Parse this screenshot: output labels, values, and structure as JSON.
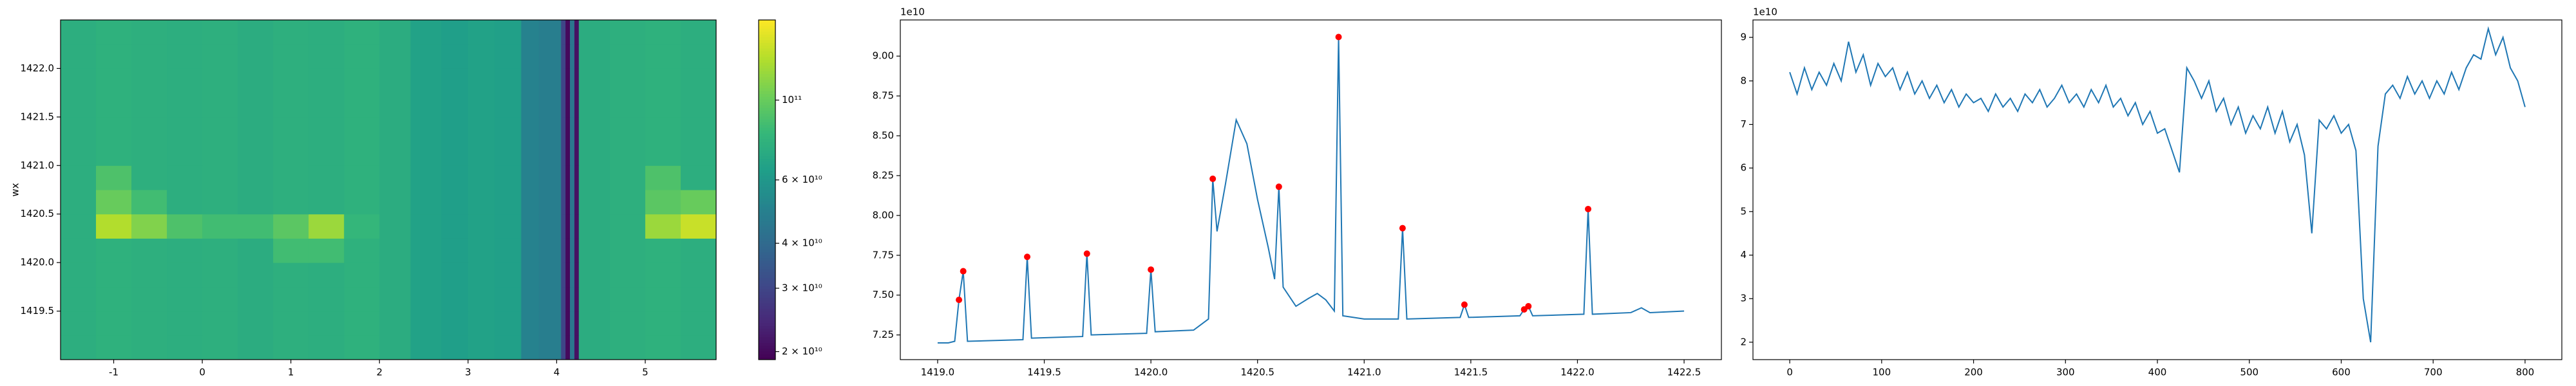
{
  "chart_data": [
    {
      "type": "heatmap",
      "ylabel": "wx",
      "x_edges": [
        -1.6,
        -1.2,
        -0.8,
        -0.4,
        0,
        0.4,
        0.8,
        1.2,
        1.6,
        2.0,
        2.35,
        2.7,
        3.0,
        3.3,
        3.6,
        3.8,
        4.05,
        4.1,
        4.15,
        4.2,
        4.25,
        4.6,
        5.0,
        5.4,
        5.8
      ],
      "y_edges": [
        1419.0,
        1419.25,
        1419.5,
        1419.75,
        1420.0,
        1420.25,
        1420.5,
        1420.75,
        1421.0,
        1421.25,
        1421.5,
        1421.75,
        1422.0,
        1422.25,
        1422.5
      ],
      "values": [
        [
          74000000000.0,
          76000000000.0,
          75000000000.0,
          74000000000.0,
          75000000000.0,
          73000000000.0,
          75000000000.0,
          74000000000.0,
          76000000000.0,
          73000000000.0,
          66000000000.0,
          64000000000.0,
          66000000000.0,
          65000000000.0,
          50000000000.0,
          48000000000.0,
          30000000000.0,
          20000000000.0,
          45000000000.0,
          21000000000.0,
          73000000000.0,
          75000000000.0,
          76000000000.0,
          74000000000.0
        ],
        [
          74000000000.0,
          76000000000.0,
          75000000000.0,
          74000000000.0,
          75000000000.0,
          73000000000.0,
          75000000000.0,
          74000000000.0,
          76000000000.0,
          73000000000.0,
          66000000000.0,
          64000000000.0,
          66000000000.0,
          65000000000.0,
          50000000000.0,
          48000000000.0,
          30000000000.0,
          20000000000.0,
          45000000000.0,
          21000000000.0,
          73000000000.0,
          75000000000.0,
          76000000000.0,
          74000000000.0
        ],
        [
          74000000000.0,
          76000000000.0,
          75000000000.0,
          74000000000.0,
          75000000000.0,
          73000000000.0,
          75000000000.0,
          74000000000.0,
          76000000000.0,
          73000000000.0,
          66000000000.0,
          64000000000.0,
          66000000000.0,
          65000000000.0,
          50000000000.0,
          48000000000.0,
          30000000000.0,
          20000000000.0,
          45000000000.0,
          21000000000.0,
          73000000000.0,
          75000000000.0,
          76000000000.0,
          74000000000.0
        ],
        [
          74000000000.0,
          76000000000.0,
          75000000000.0,
          74000000000.0,
          75000000000.0,
          73000000000.0,
          75000000000.0,
          74000000000.0,
          76000000000.0,
          73000000000.0,
          66000000000.0,
          64000000000.0,
          66000000000.0,
          65000000000.0,
          50000000000.0,
          48000000000.0,
          30000000000.0,
          20000000000.0,
          45000000000.0,
          21000000000.0,
          73000000000.0,
          75000000000.0,
          76000000000.0,
          74000000000.0
        ],
        [
          74000000000.0,
          76000000000.0,
          75000000000.0,
          74000000000.0,
          75000000000.0,
          73000000000.0,
          85000000000.0,
          85000000000.0,
          76000000000.0,
          73000000000.0,
          66000000000.0,
          64000000000.0,
          66000000000.0,
          65000000000.0,
          50000000000.0,
          48000000000.0,
          30000000000.0,
          20000000000.0,
          45000000000.0,
          21000000000.0,
          73000000000.0,
          75000000000.0,
          76000000000.0,
          74000000000.0
        ],
        [
          74000000000.0,
          130000000000.0,
          110000000000.0,
          90000000000.0,
          85000000000.0,
          85000000000.0,
          95000000000.0,
          120000000000.0,
          80000000000.0,
          73000000000.0,
          66000000000.0,
          64000000000.0,
          66000000000.0,
          65000000000.0,
          50000000000.0,
          48000000000.0,
          30000000000.0,
          20000000000.0,
          45000000000.0,
          21000000000.0,
          73000000000.0,
          75000000000.0,
          120000000000.0,
          140000000000.0
        ],
        [
          74000000000.0,
          100000000000.0,
          85000000000.0,
          74000000000.0,
          75000000000.0,
          73000000000.0,
          75000000000.0,
          74000000000.0,
          76000000000.0,
          73000000000.0,
          66000000000.0,
          64000000000.0,
          66000000000.0,
          65000000000.0,
          50000000000.0,
          48000000000.0,
          30000000000.0,
          20000000000.0,
          45000000000.0,
          21000000000.0,
          73000000000.0,
          75000000000.0,
          95000000000.0,
          100000000000.0
        ],
        [
          74000000000.0,
          90000000000.0,
          75000000000.0,
          74000000000.0,
          75000000000.0,
          73000000000.0,
          75000000000.0,
          74000000000.0,
          76000000000.0,
          73000000000.0,
          66000000000.0,
          64000000000.0,
          66000000000.0,
          65000000000.0,
          50000000000.0,
          48000000000.0,
          30000000000.0,
          20000000000.0,
          45000000000.0,
          21000000000.0,
          73000000000.0,
          75000000000.0,
          90000000000.0,
          74000000000.0
        ],
        [
          74000000000.0,
          76000000000.0,
          75000000000.0,
          74000000000.0,
          75000000000.0,
          73000000000.0,
          75000000000.0,
          74000000000.0,
          76000000000.0,
          73000000000.0,
          66000000000.0,
          64000000000.0,
          66000000000.0,
          65000000000.0,
          50000000000.0,
          48000000000.0,
          30000000000.0,
          20000000000.0,
          45000000000.0,
          21000000000.0,
          73000000000.0,
          75000000000.0,
          76000000000.0,
          74000000000.0
        ],
        [
          74000000000.0,
          76000000000.0,
          75000000000.0,
          74000000000.0,
          75000000000.0,
          73000000000.0,
          75000000000.0,
          74000000000.0,
          76000000000.0,
          73000000000.0,
          66000000000.0,
          64000000000.0,
          66000000000.0,
          65000000000.0,
          50000000000.0,
          48000000000.0,
          30000000000.0,
          20000000000.0,
          45000000000.0,
          21000000000.0,
          73000000000.0,
          75000000000.0,
          76000000000.0,
          74000000000.0
        ],
        [
          74000000000.0,
          76000000000.0,
          75000000000.0,
          74000000000.0,
          75000000000.0,
          73000000000.0,
          75000000000.0,
          74000000000.0,
          76000000000.0,
          73000000000.0,
          66000000000.0,
          64000000000.0,
          66000000000.0,
          65000000000.0,
          50000000000.0,
          48000000000.0,
          30000000000.0,
          20000000000.0,
          45000000000.0,
          21000000000.0,
          73000000000.0,
          75000000000.0,
          76000000000.0,
          74000000000.0
        ],
        [
          74000000000.0,
          76000000000.0,
          75000000000.0,
          74000000000.0,
          75000000000.0,
          73000000000.0,
          75000000000.0,
          74000000000.0,
          76000000000.0,
          73000000000.0,
          66000000000.0,
          64000000000.0,
          66000000000.0,
          65000000000.0,
          50000000000.0,
          48000000000.0,
          30000000000.0,
          20000000000.0,
          45000000000.0,
          21000000000.0,
          73000000000.0,
          75000000000.0,
          76000000000.0,
          74000000000.0
        ],
        [
          74000000000.0,
          76000000000.0,
          75000000000.0,
          74000000000.0,
          75000000000.0,
          73000000000.0,
          75000000000.0,
          74000000000.0,
          76000000000.0,
          73000000000.0,
          66000000000.0,
          64000000000.0,
          66000000000.0,
          65000000000.0,
          50000000000.0,
          48000000000.0,
          30000000000.0,
          20000000000.0,
          45000000000.0,
          21000000000.0,
          73000000000.0,
          75000000000.0,
          76000000000.0,
          74000000000.0
        ],
        [
          74000000000.0,
          76000000000.0,
          75000000000.0,
          74000000000.0,
          75000000000.0,
          73000000000.0,
          75000000000.0,
          74000000000.0,
          76000000000.0,
          73000000000.0,
          66000000000.0,
          64000000000.0,
          66000000000.0,
          65000000000.0,
          50000000000.0,
          48000000000.0,
          30000000000.0,
          20000000000.0,
          45000000000.0,
          21000000000.0,
          73000000000.0,
          75000000000.0,
          76000000000.0,
          74000000000.0
        ]
      ],
      "colorscale": "viridis",
      "color_log": true,
      "clim": [
        19000000000.0,
        167000000000.0
      ],
      "cticks": [
        {
          "value": 20000000000.0,
          "label": "2 × 10¹⁰"
        },
        {
          "value": 30000000000.0,
          "label": "3 × 10¹⁰"
        },
        {
          "value": 40000000000.0,
          "label": "4 × 10¹⁰"
        },
        {
          "value": 60000000000.0,
          "label": "6 × 10¹⁰"
        },
        {
          "value": 100000000000.0,
          "label": "10¹¹"
        }
      ],
      "xlim": [
        -1.6,
        5.8
      ],
      "xticks": [
        -1,
        0,
        1,
        2,
        3,
        4,
        5
      ],
      "ylim": [
        1419.0,
        1422.5
      ],
      "yticks": [
        1419.5,
        {
          "value": 1420.0,
          "label": "1420.0"
        },
        1420.5,
        {
          "value": 1421.0,
          "label": "1421.0"
        },
        1421.5,
        {
          "value": 1422.0,
          "label": "1422.0"
        }
      ]
    },
    {
      "type": "line",
      "offset_text": "1e10",
      "series": [
        {
          "color": "#1f77b4",
          "x": [
            1419.0,
            1419.05,
            1419.08,
            1419.1,
            1419.12,
            1419.14,
            1419.4,
            1419.42,
            1419.44,
            1419.68,
            1419.7,
            1419.72,
            1419.98,
            1420.0,
            1420.02,
            1420.2,
            1420.27,
            1420.29,
            1420.31,
            1420.35,
            1420.4,
            1420.45,
            1420.5,
            1420.55,
            1420.58,
            1420.6,
            1420.62,
            1420.68,
            1420.74,
            1420.78,
            1420.82,
            1420.86,
            1420.88,
            1420.9,
            1421.0,
            1421.16,
            1421.18,
            1421.2,
            1421.45,
            1421.47,
            1421.49,
            1421.73,
            1421.75,
            1421.77,
            1421.79,
            1422.03,
            1422.05,
            1422.07,
            1422.25,
            1422.3,
            1422.34,
            1422.5
          ],
          "values": [
            7.2,
            7.2,
            7.21,
            7.47,
            7.65,
            7.21,
            7.22,
            7.74,
            7.23,
            7.24,
            7.76,
            7.25,
            7.26,
            7.66,
            7.27,
            7.28,
            7.35,
            8.23,
            7.9,
            8.2,
            8.6,
            8.45,
            8.1,
            7.8,
            7.6,
            8.18,
            7.55,
            7.43,
            7.48,
            7.51,
            7.47,
            7.4,
            9.12,
            7.37,
            7.35,
            7.35,
            7.92,
            7.35,
            7.36,
            7.44,
            7.36,
            7.37,
            7.41,
            7.43,
            7.37,
            7.38,
            8.04,
            7.38,
            7.39,
            7.42,
            7.39,
            7.4
          ]
        },
        {
          "color": "#ff0000",
          "marker": true,
          "x": [
            1419.1,
            1419.12,
            1419.42,
            1419.7,
            1420.0,
            1420.29,
            1420.6,
            1420.88,
            1421.18,
            1421.47,
            1421.75,
            1421.77,
            1422.05
          ],
          "values": [
            7.47,
            7.65,
            7.74,
            7.76,
            7.66,
            8.23,
            8.18,
            9.12,
            7.92,
            7.44,
            7.41,
            7.43,
            8.04
          ]
        }
      ],
      "xlim": [
        1418.825,
        1422.675
      ],
      "xticks": [
        {
          "value": 1419.0,
          "label": "1419.0"
        },
        1419.5,
        {
          "value": 1420.0,
          "label": "1420.0"
        },
        1420.5,
        {
          "value": 1421.0,
          "label": "1421.0"
        },
        1421.5,
        {
          "value": 1422.0,
          "label": "1422.0"
        },
        1422.5
      ],
      "ylim": [
        7.095,
        9.227
      ],
      "yticks": [
        7.25,
        {
          "value": 7.5,
          "label": "7.50"
        },
        7.75,
        {
          "value": 8.0,
          "label": "8.00"
        },
        8.25,
        {
          "value": 8.5,
          "label": "8.50"
        },
        8.75,
        {
          "value": 9.0,
          "label": "9.00"
        }
      ]
    },
    {
      "type": "line",
      "offset_text": "1e10",
      "series": [
        {
          "color": "#1f77b4",
          "x": [
            0,
            8,
            16,
            24,
            32,
            40,
            48,
            56,
            64,
            72,
            80,
            88,
            96,
            104,
            112,
            120,
            128,
            136,
            144,
            152,
            160,
            168,
            176,
            184,
            192,
            200,
            208,
            216,
            224,
            232,
            240,
            248,
            256,
            264,
            272,
            280,
            288,
            296,
            304,
            312,
            320,
            328,
            336,
            344,
            352,
            360,
            368,
            376,
            384,
            392,
            400,
            408,
            416,
            424,
            432,
            440,
            448,
            456,
            464,
            472,
            480,
            488,
            496,
            504,
            512,
            520,
            528,
            536,
            544,
            552,
            560,
            568,
            576,
            584,
            592,
            600,
            608,
            616,
            624,
            632,
            640,
            648,
            656,
            664,
            672,
            680,
            688,
            696,
            704,
            712,
            720,
            728,
            736,
            744,
            752,
            760,
            768,
            776,
            784,
            792,
            800
          ],
          "values": [
            8.2,
            7.7,
            8.3,
            7.8,
            8.2,
            7.9,
            8.4,
            8.0,
            8.9,
            8.2,
            8.6,
            7.9,
            8.4,
            8.1,
            8.3,
            7.8,
            8.2,
            7.7,
            8.0,
            7.6,
            7.9,
            7.5,
            7.8,
            7.4,
            7.7,
            7.5,
            7.6,
            7.3,
            7.7,
            7.4,
            7.6,
            7.3,
            7.7,
            7.5,
            7.8,
            7.4,
            7.6,
            7.9,
            7.5,
            7.7,
            7.4,
            7.8,
            7.5,
            7.9,
            7.4,
            7.6,
            7.2,
            7.5,
            7.0,
            7.3,
            6.8,
            6.9,
            6.4,
            5.9,
            8.3,
            8.0,
            7.6,
            8.0,
            7.3,
            7.6,
            7.0,
            7.4,
            6.8,
            7.2,
            6.9,
            7.4,
            6.8,
            7.3,
            6.6,
            7.0,
            6.3,
            4.5,
            7.1,
            6.9,
            7.2,
            6.8,
            7.0,
            6.4,
            3.0,
            2.0,
            6.5,
            7.7,
            7.9,
            7.6,
            8.1,
            7.7,
            8.0,
            7.6,
            8.0,
            7.7,
            8.2,
            7.8,
            8.3,
            8.6,
            8.5,
            9.2,
            8.6,
            9.0,
            8.3,
            8.0,
            7.4
          ]
        }
      ],
      "xlim": [
        -40,
        840
      ],
      "xticks": [
        0,
        100,
        200,
        300,
        400,
        500,
        600,
        700,
        800
      ],
      "ylim": [
        1.6,
        9.4
      ],
      "yticks": [
        2,
        3,
        4,
        5,
        6,
        7,
        8,
        9
      ]
    }
  ]
}
